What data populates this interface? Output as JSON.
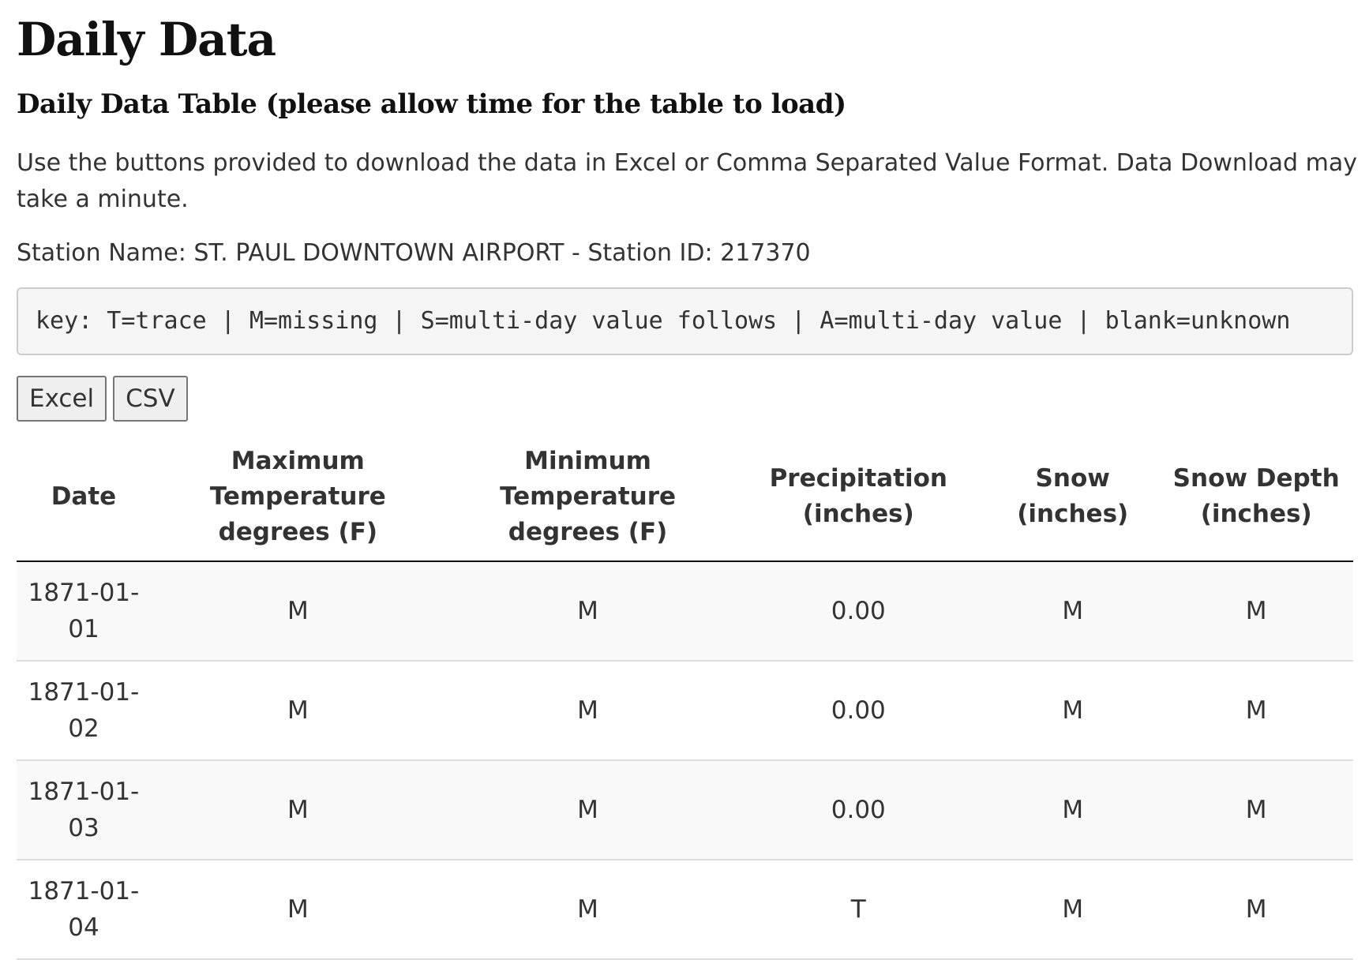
{
  "page": {
    "title": "Daily Data",
    "subtitle": "Daily Data Table (please allow time for the table to load)",
    "intro": "Use the buttons provided to download the data in Excel or Comma Separated Value Format. Data Download may take a minute.",
    "station": "Station Name: ST. PAUL DOWNTOWN AIRPORT - Station ID: 217370",
    "key": "key: T=trace | M=missing | S=multi-day value follows | A=multi-day value | blank=unknown"
  },
  "buttons": {
    "excel": "Excel",
    "csv": "CSV"
  },
  "table": {
    "headers": {
      "date": "Date",
      "max_temp": "Maximum Temperature degrees (F)",
      "min_temp": "Minimum Temperature degrees (F)",
      "precip": "Precipitation (inches)",
      "snow": "Snow (inches)",
      "snow_depth": "Snow Depth (inches)"
    },
    "rows": [
      {
        "date": "1871-01-01",
        "max_temp": "M",
        "min_temp": "M",
        "precip": "0.00",
        "snow": "M",
        "snow_depth": "M"
      },
      {
        "date": "1871-01-02",
        "max_temp": "M",
        "min_temp": "M",
        "precip": "0.00",
        "snow": "M",
        "snow_depth": "M"
      },
      {
        "date": "1871-01-03",
        "max_temp": "M",
        "min_temp": "M",
        "precip": "0.00",
        "snow": "M",
        "snow_depth": "M"
      },
      {
        "date": "1871-01-04",
        "max_temp": "M",
        "min_temp": "M",
        "precip": "T",
        "snow": "M",
        "snow_depth": "M"
      }
    ]
  }
}
